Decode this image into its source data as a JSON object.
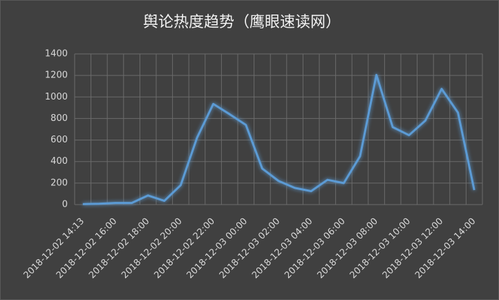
{
  "chart_data": {
    "type": "line",
    "title": "舆论热度趋势（鹰眼速读网）",
    "categories": [
      "2018-12-02 14:13",
      null,
      "2018-12-02 16:00",
      null,
      "2018-12-02 18:00",
      null,
      "2018-12-02 20:00",
      null,
      "2018-12-02 22:00",
      null,
      "2018-12-03 00:00",
      null,
      "2018-12-03 02:00",
      null,
      "2018-12-03 04:00",
      null,
      "2018-12-03 06:00",
      null,
      "2018-12-03 08:00",
      null,
      "2018-12-03 10:00",
      null,
      "2018-12-03 12:00",
      null,
      "2018-12-03 14:00"
    ],
    "values": [
      5,
      8,
      15,
      15,
      85,
      35,
      180,
      620,
      935,
      840,
      740,
      335,
      220,
      155,
      125,
      230,
      200,
      450,
      1205,
      720,
      645,
      780,
      1075,
      855,
      135
    ],
    "color": "#5b9bd5",
    "ylim": [
      0,
      1400
    ],
    "yticks": [
      0,
      200,
      400,
      600,
      800,
      1000,
      1200,
      1400
    ],
    "grid": true
  }
}
